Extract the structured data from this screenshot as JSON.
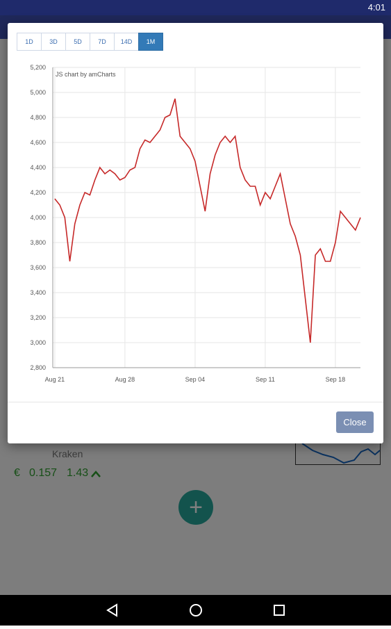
{
  "status": {
    "time": "4:01"
  },
  "range_buttons": [
    "1D",
    "3D",
    "5D",
    "7D",
    "14D",
    "1M"
  ],
  "active_button": 5,
  "chart_data": {
    "type": "line",
    "credit": "JS chart by amCharts",
    "x": [
      0,
      0.5,
      1,
      1.5,
      2,
      2.5,
      3,
      3.5,
      4,
      4.5,
      5,
      5.5,
      6,
      6.5,
      7,
      7.5,
      8,
      8.5,
      9,
      9.5,
      10,
      10.5,
      11,
      11.5,
      12,
      12.5,
      13,
      13.5,
      14,
      14.5,
      15,
      15.5,
      16,
      16.5,
      17,
      17.5,
      18,
      18.5,
      19,
      19.5,
      20,
      20.5,
      21,
      21.5,
      22,
      22.5,
      23,
      23.5,
      24,
      24.5,
      25,
      25.5,
      26,
      26.5,
      27,
      27.5,
      28,
      28.5,
      29,
      29.5,
      30,
      30.5
    ],
    "series": [
      {
        "color": "#c62828",
        "values": [
          4150,
          4100,
          4000,
          3650,
          3950,
          4100,
          4200,
          4180,
          4300,
          4400,
          4350,
          4380,
          4350,
          4300,
          4320,
          4380,
          4400,
          4550,
          4620,
          4600,
          4650,
          4700,
          4800,
          4820,
          4950,
          4650,
          4600,
          4550,
          4450,
          4250,
          4050,
          4350,
          4500,
          4600,
          4650,
          4600,
          4650,
          4400,
          4300,
          4250,
          4250,
          4100,
          4200,
          4150,
          4250,
          4350,
          4150,
          3950,
          3850,
          3700,
          3350,
          3000,
          3700,
          3750,
          3650,
          3650,
          3800,
          4050,
          4000,
          3950,
          3900,
          4000
        ]
      }
    ],
    "xlim": [
      -0.2,
      30.5
    ],
    "xticks": [
      {
        "value": 0,
        "label": "Aug 21"
      },
      {
        "value": 7,
        "label": "Aug 28"
      },
      {
        "value": 14,
        "label": "Sep 04"
      },
      {
        "value": 21,
        "label": "Sep 11"
      },
      {
        "value": 28,
        "label": "Sep 18"
      }
    ],
    "ylim": [
      2800,
      5200
    ],
    "yticks": [
      {
        "value": 2800,
        "label": "2,800"
      },
      {
        "value": 3000,
        "label": "3,000"
      },
      {
        "value": 3200,
        "label": "3,200"
      },
      {
        "value": 3400,
        "label": "3,400"
      },
      {
        "value": 3600,
        "label": "3,600"
      },
      {
        "value": 3800,
        "label": "3,800"
      },
      {
        "value": 4000,
        "label": "4,000"
      },
      {
        "value": 4200,
        "label": "4,200"
      },
      {
        "value": 4400,
        "label": "4,400"
      },
      {
        "value": 4600,
        "label": "4,600"
      },
      {
        "value": 4800,
        "label": "4,800"
      },
      {
        "value": 5000,
        "label": "5,000"
      },
      {
        "value": 5200,
        "label": "5,200"
      }
    ],
    "grid": true
  },
  "close_button": "Close",
  "background": {
    "exchange": "Kraken",
    "currency": "€",
    "price": "0.157",
    "change": "1.43"
  }
}
